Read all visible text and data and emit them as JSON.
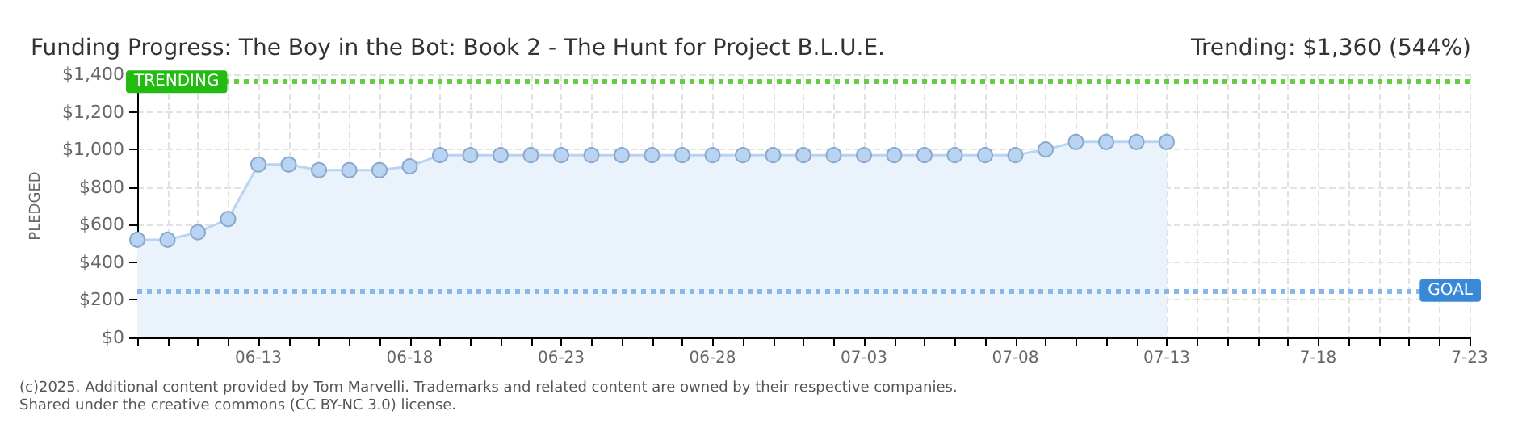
{
  "chart_data": {
    "type": "area",
    "title": "Funding Progress: The Boy in the Bot: Book 2 - The Hunt for Project B.L.U.E.",
    "subtitle": "Trending: $1,360 (544%)",
    "ylabel": "PLEDGED",
    "categories": [
      null,
      null,
      null,
      null,
      "06-13",
      null,
      null,
      null,
      null,
      "06-18",
      null,
      null,
      null,
      null,
      "06-23",
      null,
      null,
      null,
      null,
      "06-28",
      null,
      null,
      null,
      null,
      "07-03",
      null,
      null,
      null,
      null,
      "07-08",
      null,
      null,
      null,
      null,
      "07-13",
      null,
      null,
      null,
      null,
      "7-18",
      null,
      null,
      null,
      null,
      "7-23"
    ],
    "series": [
      {
        "color": "#b9d4f3",
        "values": [
          520,
          520,
          560,
          630,
          920,
          920,
          890,
          890,
          890,
          910,
          970,
          970,
          970,
          970,
          970,
          970,
          970,
          970,
          970,
          970,
          970,
          970,
          970,
          970,
          970,
          970,
          970,
          970,
          970,
          970,
          1000,
          1040,
          1040,
          1040,
          1040,
          null,
          null,
          null,
          null,
          null,
          null,
          null,
          null,
          null,
          null
        ]
      }
    ],
    "ylim": [
      0,
      1400
    ],
    "yticks": [
      {
        "value": 0,
        "label": "$0"
      },
      {
        "value": 200,
        "label": "$200"
      },
      {
        "value": 400,
        "label": "$400"
      },
      {
        "value": 600,
        "label": "$600"
      },
      {
        "value": 800,
        "label": "$800"
      },
      {
        "value": 1000,
        "label": "$1,000"
      },
      {
        "value": 1200,
        "label": "$1,200"
      },
      {
        "value": 1400,
        "label": "$1,400"
      }
    ],
    "grid": true,
    "marker": "circle",
    "ref_lines": [
      {
        "axis": "y",
        "value": 1360,
        "label": "TRENDING",
        "color": "#66cc44",
        "line_style": "dotted"
      },
      {
        "axis": "y",
        "value": 250,
        "label": "GOAL",
        "color": "#88b8ea",
        "line_style": "dotted"
      }
    ],
    "annotations": [
      "(c)2025. Additional content provided by Tom Marvelli. Trademarks and related content are owned by their respective companies.",
      "Shared under the creative commons (CC BY-NC 3.0) license."
    ]
  }
}
